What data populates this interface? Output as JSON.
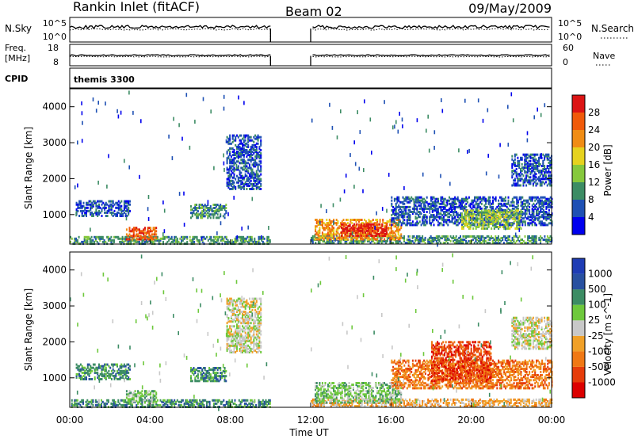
{
  "header": {
    "station": "Rankin Inlet (fitACF)",
    "beam": "Beam 02",
    "date": "09/May/2009"
  },
  "strips": {
    "nsky_label": "N.Sky",
    "nsearch_label": "N.Search",
    "nsky_tick_top": "10^5",
    "nsky_tick_bottom": "10^0",
    "nsearch_tick_top": "10^5",
    "nsearch_tick_bottom": "10^0",
    "freq_label": "Freq.",
    "freq_unit": "[MHz]",
    "freq_tick_top": "18",
    "freq_tick_bottom": "8",
    "nave_label": "Nave",
    "nave_tick_top": "60",
    "nave_tick_bottom": "0",
    "cpid_label": "CPID",
    "cpid_value": "themis 3300"
  },
  "chart_data": [
    {
      "type": "heatmap",
      "name": "power",
      "ylabel": "Slant Range [km]",
      "ylim": [
        180,
        4500
      ],
      "yticks": [
        "1000",
        "2000",
        "3000",
        "4000"
      ],
      "xlim": [
        0,
        24
      ],
      "colorbar_label": "Power [dB]",
      "colorbar_ticks": [
        "4",
        "8",
        "12",
        "16",
        "20",
        "24",
        "28"
      ],
      "colors": [
        "#0000ee",
        "#1e50b4",
        "#3c8c64",
        "#86c83c",
        "#e6d21e",
        "#f08c14",
        "#f05a0a",
        "#dc1414"
      ],
      "data_gaps_ut": [
        [
          10.0,
          12.0
        ]
      ],
      "features": [
        {
          "t0": 0.0,
          "t1": 10.0,
          "r0": 180,
          "r1": 380,
          "level": 2
        },
        {
          "t0": 0.3,
          "t1": 3.0,
          "r0": 950,
          "r1": 1400,
          "level": 1
        },
        {
          "t0": 2.8,
          "t1": 4.3,
          "r0": 300,
          "r1": 650,
          "level": 6
        },
        {
          "t0": 6.0,
          "t1": 7.8,
          "r0": 900,
          "r1": 1300,
          "level": 2
        },
        {
          "t0": 7.8,
          "t1": 9.5,
          "r0": 1700,
          "r1": 3200,
          "level": 1
        },
        {
          "t0": 12.0,
          "t1": 24.0,
          "r0": 200,
          "r1": 400,
          "level": 2
        },
        {
          "t0": 12.2,
          "t1": 16.5,
          "r0": 300,
          "r1": 850,
          "level": 5
        },
        {
          "t0": 13.5,
          "t1": 15.8,
          "r0": 400,
          "r1": 750,
          "level": 7
        },
        {
          "t0": 16.0,
          "t1": 24.0,
          "r0": 700,
          "r1": 1500,
          "level": 1
        },
        {
          "t0": 19.5,
          "t1": 22.5,
          "r0": 600,
          "r1": 1100,
          "level": 3
        },
        {
          "t0": 22.0,
          "t1": 24.0,
          "r0": 1800,
          "r1": 2700,
          "level": 1
        }
      ]
    },
    {
      "type": "heatmap",
      "name": "velocity",
      "ylabel": "Slant Range [km]",
      "ylim": [
        180,
        4500
      ],
      "yticks": [
        "1000",
        "2000",
        "3000",
        "4000"
      ],
      "xlim": [
        0,
        24
      ],
      "xticks": [
        "00:00",
        "04:00",
        "08:00",
        "12:00",
        "16:00",
        "20:00",
        "00:00"
      ],
      "xlabel": "Time UT",
      "colorbar_label": "Velocity [m s^-1]",
      "colorbar_ticks": [
        "1000",
        "500",
        "100",
        "25",
        "-25",
        "-100",
        "-500",
        "-1000"
      ],
      "colors": [
        "#1e3cb4",
        "#2850a0",
        "#3c8c64",
        "#6ec83c",
        "#c8c8c8",
        "#f0a028",
        "#f07814",
        "#e63c0a",
        "#dc0000"
      ],
      "data_gaps_ut": [
        [
          10.0,
          12.0
        ]
      ],
      "features": [
        {
          "t0": 0.0,
          "t1": 10.0,
          "r0": 180,
          "r1": 380,
          "level": 2
        },
        {
          "t0": 0.3,
          "t1": 3.0,
          "r0": 950,
          "r1": 1400,
          "level": 2
        },
        {
          "t0": 2.8,
          "t1": 4.3,
          "r0": 300,
          "r1": 650,
          "level": 3
        },
        {
          "t0": 6.0,
          "t1": 7.8,
          "r0": 900,
          "r1": 1300,
          "level": 2
        },
        {
          "t0": 7.8,
          "t1": 9.5,
          "r0": 1700,
          "r1": 3200,
          "level": 4
        },
        {
          "t0": 12.0,
          "t1": 24.0,
          "r0": 200,
          "r1": 400,
          "level": 5
        },
        {
          "t0": 12.2,
          "t1": 16.5,
          "r0": 300,
          "r1": 850,
          "level": 3
        },
        {
          "t0": 16.0,
          "t1": 24.0,
          "r0": 700,
          "r1": 1500,
          "level": 6
        },
        {
          "t0": 18.0,
          "t1": 21.0,
          "r0": 900,
          "r1": 2000,
          "level": 7
        },
        {
          "t0": 22.0,
          "t1": 24.0,
          "r0": 1800,
          "r1": 2700,
          "level": 4
        }
      ]
    }
  ]
}
